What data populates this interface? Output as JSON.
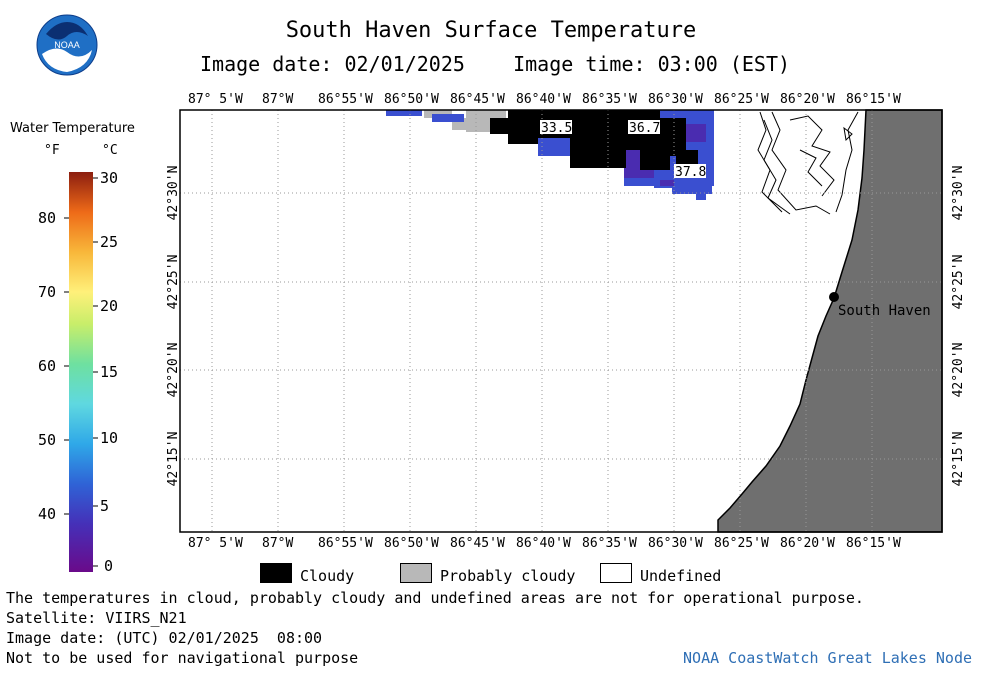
{
  "header": {
    "title": "South Haven Surface Temperature",
    "image_date": "Image date: 02/01/2025",
    "image_time": "Image time: 03:00 (EST)"
  },
  "logo": {
    "text": "NOAA",
    "icon": "noaa-logo-icon"
  },
  "colorbar": {
    "title": "Water Temperature",
    "unit_f": "°F",
    "unit_c": "°C",
    "f_ticks": [
      "80",
      "70",
      "60",
      "50",
      "40"
    ],
    "c_ticks": [
      "30",
      "25",
      "20",
      "15",
      "10",
      "5",
      "0"
    ]
  },
  "map": {
    "lon_labels": [
      "87° 5'W",
      "87°W",
      "86°55'W",
      "86°50'W",
      "86°45'W",
      "86°40'W",
      "86°35'W",
      "86°30'W",
      "86°25'W",
      "86°20'W",
      "86°15'W"
    ],
    "lat_labels": [
      "42°30'N",
      "42°25'N",
      "42°20'N",
      "42°15'N"
    ],
    "city": "South Haven",
    "temp_labels": [
      "33.5",
      "36.7",
      "37.8"
    ],
    "land_color": "#6f6f6f",
    "cloud_color": "#000000",
    "water_cold_color": "#3a4fd0"
  },
  "legend_keys": {
    "cloudy": "Cloudy",
    "probably_cloudy": "Probably cloudy",
    "undefined": "Undefined"
  },
  "footer": {
    "disclaimer": "The temperatures in cloud, probably cloudy and undefined areas are not for operational purpose.",
    "satellite": "Satellite: VIIRS_N21",
    "utc_date": "Image date: (UTC) 02/01/2025  08:00",
    "nav_warning": "Not to be used for navigational purpose",
    "credit": "NOAA CoastWatch Great Lakes Node"
  }
}
